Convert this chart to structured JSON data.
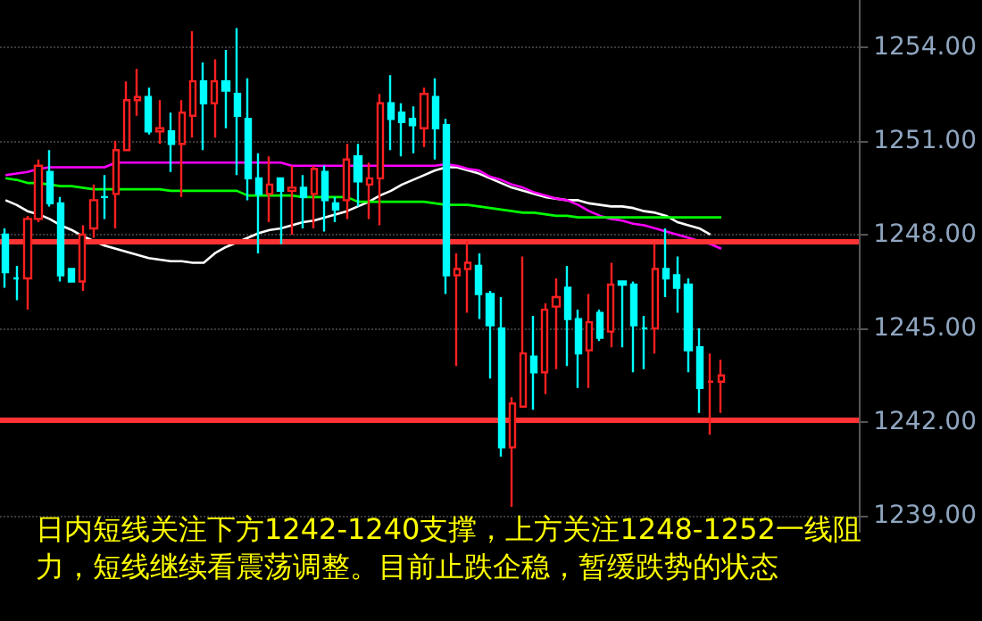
{
  "chart_data": {
    "type": "candlestick",
    "categories": [
      null,
      null,
      null,
      null,
      null,
      null,
      null,
      null,
      null,
      null,
      null,
      null,
      null,
      null,
      null,
      null,
      null,
      null,
      null,
      null,
      null,
      null,
      null,
      null,
      null,
      null,
      null,
      null,
      null,
      null,
      null,
      null,
      null,
      null,
      null,
      null,
      null,
      null,
      null,
      null,
      null,
      null,
      null,
      null,
      null,
      null,
      null,
      null,
      null,
      null,
      null,
      null,
      null,
      null,
      null,
      null,
      null,
      null,
      null,
      null,
      null,
      null,
      null,
      null,
      null,
      null,
      null,
      null,
      null,
      null,
      null,
      null,
      null,
      null,
      null,
      null,
      null,
      null
    ],
    "series": [
      {
        "ohlc": [
          [
            1248.0,
            1248.2,
            1246.3,
            1246.8
          ],
          [
            1246.6,
            1247.0,
            1245.9,
            1246.6
          ],
          [
            1246.6,
            1248.6,
            1245.6,
            1248.5
          ],
          [
            1248.5,
            1250.4,
            1248.4,
            1250.2
          ],
          [
            1250.0,
            1250.7,
            1248.9,
            1249.0
          ],
          [
            1249.0,
            1249.2,
            1246.5,
            1246.7
          ],
          [
            1246.9,
            1246.9,
            1246.5,
            1246.5
          ],
          [
            1246.5,
            1248.3,
            1246.2,
            1248.0
          ],
          [
            1248.2,
            1249.6,
            1247.9,
            1249.1
          ],
          [
            1249.2,
            1249.9,
            1248.5,
            1249.2
          ],
          [
            1249.3,
            1251.0,
            1248.2,
            1250.7
          ],
          [
            1250.7,
            1252.9,
            1250.7,
            1252.3
          ],
          [
            1252.3,
            1253.3,
            1251.8,
            1252.4
          ],
          [
            1252.4,
            1252.7,
            1251.2,
            1251.3
          ],
          [
            1251.3,
            1252.3,
            1250.9,
            1251.4
          ],
          [
            1251.3,
            1251.9,
            1250.0,
            1250.9
          ],
          [
            1250.9,
            1252.3,
            1249.2,
            1251.9
          ],
          [
            1251.8,
            1254.5,
            1251.1,
            1252.9
          ],
          [
            1252.9,
            1253.5,
            1250.7,
            1252.2
          ],
          [
            1252.2,
            1253.6,
            1251.1,
            1252.9
          ],
          [
            1252.9,
            1253.9,
            1251.4,
            1252.6
          ],
          [
            1252.5,
            1254.6,
            1249.9,
            1251.8
          ],
          [
            1251.7,
            1253.0,
            1249.1,
            1249.8
          ],
          [
            1249.8,
            1250.6,
            1247.4,
            1249.3
          ],
          [
            1249.3,
            1250.5,
            1248.4,
            1249.6
          ],
          [
            1249.8,
            1249.8,
            1247.7,
            1249.4
          ],
          [
            1249.4,
            1250.2,
            1248.0,
            1249.5
          ],
          [
            1249.5,
            1249.9,
            1248.2,
            1249.2
          ],
          [
            1249.3,
            1250.2,
            1248.2,
            1250.1
          ],
          [
            1250.0,
            1250.2,
            1248.1,
            1249.1
          ],
          [
            1249.0,
            1249.2,
            1248.4,
            1248.8
          ],
          [
            1249.1,
            1250.9,
            1248.5,
            1250.4
          ],
          [
            1250.5,
            1250.9,
            1248.9,
            1249.7
          ],
          [
            1249.6,
            1250.3,
            1248.5,
            1249.8
          ],
          [
            1249.8,
            1252.5,
            1248.3,
            1252.2
          ],
          [
            1252.2,
            1253.1,
            1250.7,
            1251.7
          ],
          [
            1251.9,
            1252.2,
            1250.5,
            1251.6
          ],
          [
            1251.7,
            1252.1,
            1250.6,
            1251.5
          ],
          [
            1251.4,
            1252.7,
            1250.8,
            1252.5
          ],
          [
            1252.4,
            1253.0,
            1250.4,
            1251.4
          ],
          [
            1251.5,
            1251.7,
            1246.1,
            1246.7
          ],
          [
            1246.7,
            1247.4,
            1243.8,
            1246.9
          ],
          [
            1246.9,
            1247.8,
            1245.5,
            1247.1
          ],
          [
            1247.0,
            1247.4,
            1245.3,
            1246.1
          ],
          [
            1246.1,
            1246.2,
            1243.4,
            1245.1
          ],
          [
            1245.0,
            1246.0,
            1240.9,
            1241.2
          ],
          [
            1241.2,
            1242.8,
            1239.3,
            1242.6
          ],
          [
            1242.5,
            1247.3,
            1242.5,
            1244.2
          ],
          [
            1244.1,
            1245.4,
            1242.4,
            1243.6
          ],
          [
            1243.6,
            1245.8,
            1242.9,
            1245.6
          ],
          [
            1245.7,
            1246.6,
            1243.7,
            1246.0
          ],
          [
            1246.3,
            1247.0,
            1243.8,
            1245.3
          ],
          [
            1245.3,
            1245.6,
            1243.1,
            1244.2
          ],
          [
            1244.3,
            1246.1,
            1243.1,
            1245.2
          ],
          [
            1245.5,
            1245.6,
            1244.6,
            1244.7
          ],
          [
            1244.9,
            1247.1,
            1244.4,
            1246.4
          ],
          [
            1246.5,
            1246.5,
            1244.4,
            1246.4
          ],
          [
            1246.4,
            1246.5,
            1243.6,
            1245.1
          ],
          [
            1245.0,
            1245.4,
            1243.7,
            1245.0
          ],
          [
            1245.0,
            1247.7,
            1244.2,
            1246.9
          ],
          [
            1246.9,
            1248.2,
            1246.0,
            1246.6
          ],
          [
            1246.7,
            1247.3,
            1245.5,
            1246.3
          ],
          [
            1246.4,
            1246.6,
            1243.6,
            1244.3
          ],
          [
            1244.4,
            1245.0,
            1242.3,
            1243.1
          ],
          [
            1243.3,
            1244.2,
            1241.6,
            1243.3
          ],
          [
            1243.3,
            1244.0,
            1242.3,
            1243.5
          ],
          null,
          null,
          null,
          null,
          null,
          null,
          null,
          null,
          null,
          null,
          null,
          null
        ],
        "colors": [
          "#00ffff",
          "#00ffff",
          "#ff2020",
          "#ff2020",
          "#00ffff",
          "#00ffff",
          "#00ffff",
          "#ff2020",
          "#ff2020",
          "#00ffff",
          "#ff2020",
          "#ff2020",
          "#ff2020",
          "#00ffff",
          "#ff2020",
          "#00ffff",
          "#ff2020",
          "#ff2020",
          "#00ffff",
          "#ff2020",
          "#00ffff",
          "#00ffff",
          "#00ffff",
          "#00ffff",
          "#ff2020",
          "#00ffff",
          "#ff2020",
          "#00ffff",
          "#ff2020",
          "#00ffff",
          "#00ffff",
          "#ff2020",
          "#00ffff",
          "#ff2020",
          "#ff2020",
          "#00ffff",
          "#00ffff",
          "#00ffff",
          "#ff2020",
          "#00ffff",
          "#00ffff",
          "#ff2020",
          "#ff2020",
          "#00ffff",
          "#00ffff",
          "#00ffff",
          "#ff2020",
          "#ff2020",
          "#00ffff",
          "#ff2020",
          "#ff2020",
          "#00ffff",
          "#00ffff",
          "#ff2020",
          "#00ffff",
          "#ff2020",
          "#00ffff",
          "#00ffff",
          "#00ffff",
          "#ff2020",
          "#00ffff",
          "#00ffff",
          "#00ffff",
          "#00ffff",
          "#ff2020",
          "#ff2020",
          null,
          null,
          null,
          null,
          null,
          null,
          null,
          null,
          null,
          null,
          null,
          null
        ]
      },
      {
        "type": "line",
        "color": "#ffffff",
        "values": [
          1249.1,
          1248.95,
          1248.75,
          1248.65,
          1248.5,
          1248.3,
          1248.15,
          1247.95,
          1247.8,
          1247.65,
          1247.55,
          1247.45,
          1247.35,
          1247.25,
          1247.2,
          1247.15,
          1247.15,
          1247.1,
          1247.1,
          1247.4,
          1247.6,
          1247.75,
          1247.9,
          1248.05,
          1248.15,
          1248.2,
          1248.3,
          1248.4,
          1248.45,
          1248.55,
          1248.65,
          1248.75,
          1248.9,
          1249.05,
          1249.25,
          1249.4,
          1249.6,
          1249.75,
          1249.9,
          1250.05,
          1250.15,
          1250.15,
          1250.05,
          1249.95,
          1249.8,
          1249.65,
          1249.5,
          1249.4,
          1249.3,
          1249.2,
          1249.15,
          1249.1,
          1249.1,
          1249.0,
          1248.95,
          1248.9,
          1248.9,
          1248.85,
          1248.75,
          1248.7,
          1248.6,
          1248.4,
          1248.3,
          1248.2,
          1248.0,
          null,
          null,
          null,
          null,
          null,
          null,
          null,
          null,
          null,
          null,
          null,
          null,
          null
        ]
      },
      {
        "type": "line",
        "color": "#ff00ff",
        "values": [
          1249.9,
          1249.95,
          1250.0,
          1250.1,
          1250.15,
          1250.15,
          1250.15,
          1250.15,
          1250.15,
          1250.15,
          1250.3,
          1250.3,
          1250.3,
          1250.3,
          1250.3,
          1250.3,
          1250.3,
          1250.3,
          1250.3,
          1250.3,
          1250.3,
          1250.3,
          1250.3,
          1250.3,
          1250.3,
          1250.3,
          1250.2,
          1250.2,
          1250.2,
          1250.2,
          1250.2,
          1250.2,
          1250.2,
          1250.2,
          1250.2,
          1250.2,
          1250.2,
          1250.2,
          1250.2,
          1250.2,
          1250.25,
          1250.2,
          1250.1,
          1250.05,
          1249.85,
          1249.75,
          1249.6,
          1249.5,
          1249.35,
          1249.25,
          1249.15,
          1249.1,
          1248.95,
          1248.75,
          1248.6,
          1248.5,
          1248.45,
          1248.35,
          1248.3,
          1248.2,
          1248.1,
          1248.0,
          1247.9,
          1247.8,
          1247.7,
          1247.55,
          null,
          null,
          null,
          null,
          null,
          null,
          null,
          null,
          null,
          null,
          null,
          null
        ]
      },
      {
        "type": "line",
        "color": "#00ff00",
        "values": [
          1249.8,
          1249.75,
          1249.65,
          1249.65,
          1249.6,
          1249.55,
          1249.55,
          1249.5,
          1249.45,
          1249.45,
          1249.45,
          1249.45,
          1249.45,
          1249.45,
          1249.45,
          1249.4,
          1249.4,
          1249.4,
          1249.4,
          1249.4,
          1249.4,
          1249.4,
          1249.25,
          1249.25,
          1249.25,
          1249.25,
          1249.25,
          1249.2,
          1249.2,
          1249.2,
          1249.2,
          1249.2,
          1249.05,
          1249.05,
          1249.05,
          1249.05,
          1249.05,
          1249.05,
          1249.05,
          1249.0,
          1248.95,
          1248.95,
          1248.95,
          1248.9,
          1248.85,
          1248.8,
          1248.75,
          1248.7,
          1248.7,
          1248.65,
          1248.6,
          1248.6,
          1248.55,
          1248.55,
          1248.55,
          1248.55,
          1248.55,
          1248.55,
          1248.55,
          1248.55,
          1248.55,
          1248.55,
          1248.55,
          1248.55,
          1248.55,
          1248.55,
          null,
          null,
          null,
          null,
          null,
          null,
          null,
          null,
          null,
          null,
          null,
          null
        ]
      }
    ],
    "ylim": [
      1238.5,
      1255.5
    ],
    "yticks": [
      {
        "value": 1239,
        "label": "1239.00"
      },
      {
        "value": 1242,
        "label": "1242.00"
      },
      {
        "value": 1245,
        "label": "1245.00"
      },
      {
        "value": 1248,
        "label": "1248.00"
      },
      {
        "value": 1251,
        "label": "1251.00"
      },
      {
        "value": 1254,
        "label": "1254.00"
      }
    ],
    "ref_lines": [
      {
        "axis": "y",
        "value": 1247.8,
        "color": "#ff3333"
      },
      {
        "axis": "y",
        "value": 1242.1,
        "color": "#ff3333"
      }
    ],
    "annotations": [
      "日内短线关注下方1242-1240支撑，上方关注1248-1252一线阻力，短线继续看震荡调整。目前止跌企稳，暂缓跌势的状态"
    ],
    "grid": "y",
    "tick_labels": "y"
  }
}
